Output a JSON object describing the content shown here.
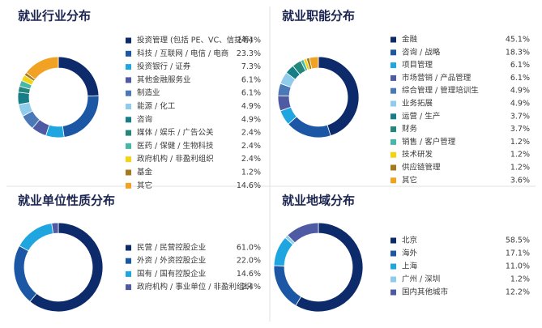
{
  "chart_data": [
    {
      "type": "pie",
      "title": "就业行业分布",
      "categories": [
        "投资管理 (包括 PE、VC、信托等)",
        "科技 / 互联网 / 电信 / 电商",
        "投资银行 / 证券",
        "其他金融服务业",
        "制造业",
        "能源 / 化工",
        "咨询",
        "媒体 / 娱乐 / 广告公关",
        "医药 / 保健 / 生物科技",
        "政府机构 / 非盈利组织",
        "基金",
        "其它"
      ],
      "values": [
        24.4,
        23.3,
        7.3,
        6.1,
        6.1,
        4.9,
        4.9,
        2.4,
        2.4,
        2.4,
        1.2,
        14.6
      ],
      "value_labels": [
        "24.4%",
        "23.3%",
        "7.3%",
        "6.1%",
        "6.1%",
        "4.9%",
        "4.9%",
        "2.4%",
        "2.4%",
        "2.4%",
        "1.2%",
        "14.6%"
      ],
      "colors": [
        "#0d2a6b",
        "#1c57a5",
        "#1fa6e0",
        "#4f5aa4",
        "#4b78b6",
        "#8fcbea",
        "#177d86",
        "#25877c",
        "#46b7a8",
        "#f3d312",
        "#a57a1e",
        "#f2a223"
      ]
    },
    {
      "type": "pie",
      "title": "就业职能分布",
      "categories": [
        "金融",
        "咨询 / 战略",
        "项目管理",
        "市场营销 / 产品管理",
        "综合管理 / 管理培训生",
        "业务拓展",
        "运营 / 生产",
        "财务",
        "销售 / 客户管理",
        "技术研发",
        "供应链管理",
        "其它"
      ],
      "values": [
        45.1,
        18.3,
        6.1,
        6.1,
        4.9,
        4.9,
        3.7,
        3.7,
        1.2,
        1.2,
        1.2,
        3.6
      ],
      "value_labels": [
        "45.1%",
        "18.3%",
        "6.1%",
        "6.1%",
        "4.9%",
        "4.9%",
        "3.7%",
        "3.7%",
        "1.2%",
        "1.2%",
        "1.2%",
        "3.6%"
      ],
      "colors": [
        "#0d2a6b",
        "#1c57a5",
        "#1fa6e0",
        "#4f5aa4",
        "#4b78b6",
        "#8fcbea",
        "#177d86",
        "#25877c",
        "#46b7a8",
        "#f3d312",
        "#a57a1e",
        "#f2a223"
      ]
    },
    {
      "type": "pie",
      "title": "就业单位性质分布",
      "categories": [
        "民营 / 民营控股企业",
        "外资 / 外资控股企业",
        "国有 / 国有控股企业",
        "政府机构 / 事业单位 / 非盈利组织"
      ],
      "values": [
        61.0,
        22.0,
        14.6,
        2.4
      ],
      "value_labels": [
        "61.0%",
        "22.0%",
        "14.6%",
        "2.4%"
      ],
      "colors": [
        "#0d2a6b",
        "#1c57a5",
        "#1fa6e0",
        "#4f5aa4"
      ]
    },
    {
      "type": "pie",
      "title": "就业地域分布",
      "categories": [
        "北京",
        "海外",
        "上海",
        "广州 / 深圳",
        "国内其他城市"
      ],
      "values": [
        58.5,
        17.1,
        11.0,
        1.2,
        12.2
      ],
      "value_labels": [
        "58.5%",
        "17.1%",
        "11.0%",
        "1.2%",
        "12.2%"
      ],
      "colors": [
        "#0d2a6b",
        "#1c57a5",
        "#1fa6e0",
        "#8fcbea",
        "#4f5aa4"
      ]
    }
  ]
}
